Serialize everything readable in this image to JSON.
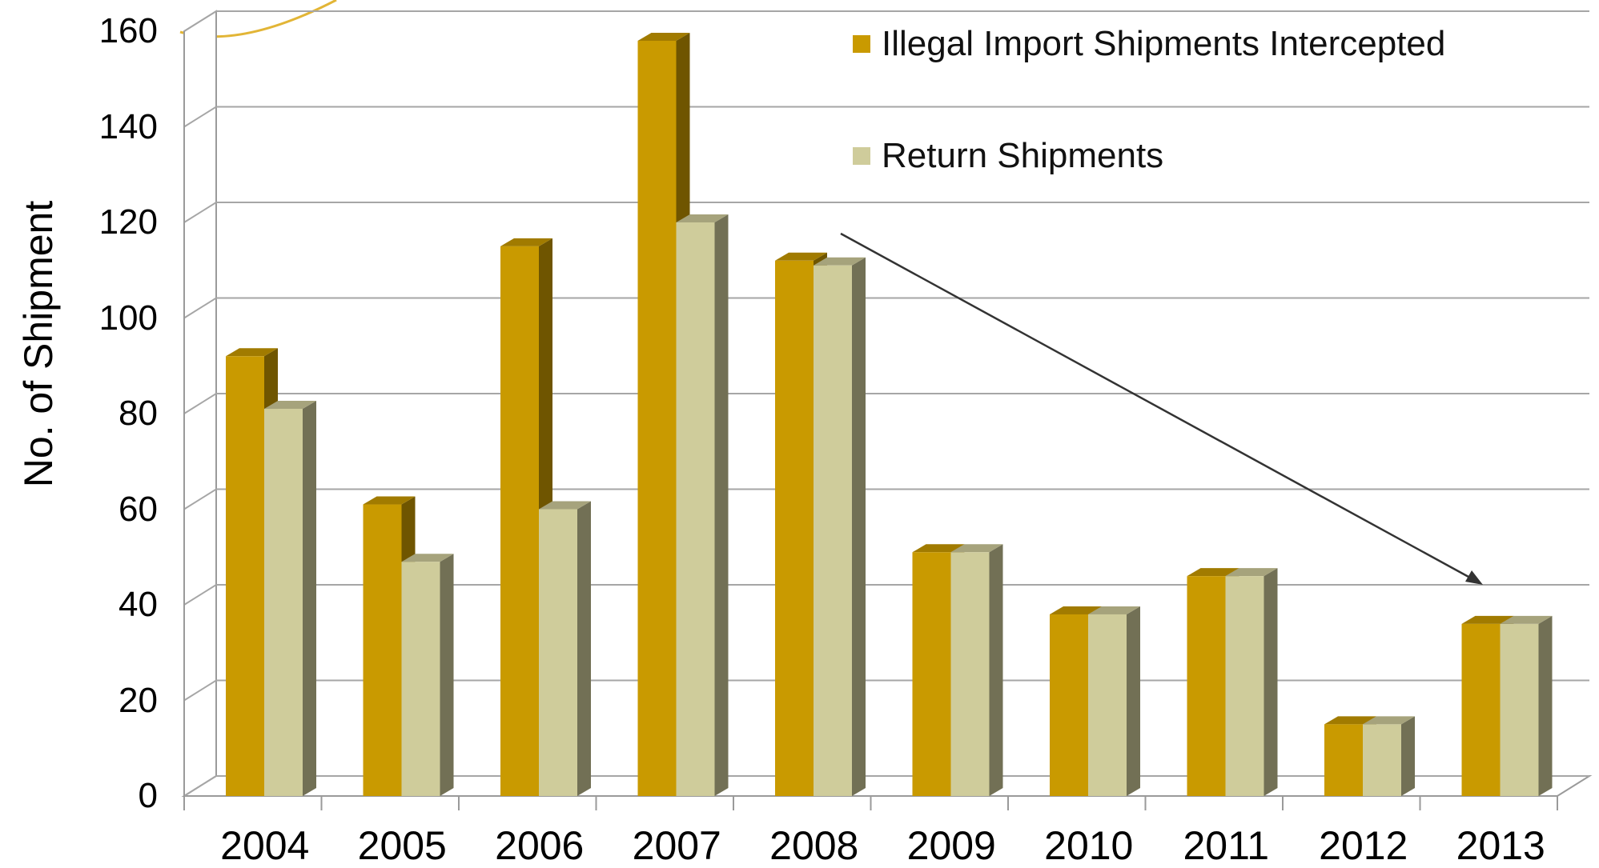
{
  "chart_data": {
    "type": "bar",
    "title": "",
    "xlabel": "",
    "ylabel": "No. of Shipment",
    "ylim": [
      0,
      160
    ],
    "yticks": [
      0,
      20,
      40,
      60,
      80,
      100,
      120,
      140,
      160
    ],
    "grid": true,
    "legend_position": "top-right",
    "categories": [
      "2004",
      "2005",
      "2006",
      "2007",
      "2008",
      "2009",
      "2010",
      "2011",
      "2012",
      "2013"
    ],
    "series": [
      {
        "name": "Illegal Import Shipments Intercepted",
        "color": "#c99a00",
        "values": [
          92,
          61,
          115,
          158,
          112,
          51,
          38,
          46,
          15,
          36
        ]
      },
      {
        "name": "Return Shipments",
        "color": "#cfcc9b",
        "values": [
          81,
          49,
          60,
          120,
          111,
          51,
          38,
          46,
          15,
          36
        ]
      }
    ]
  }
}
